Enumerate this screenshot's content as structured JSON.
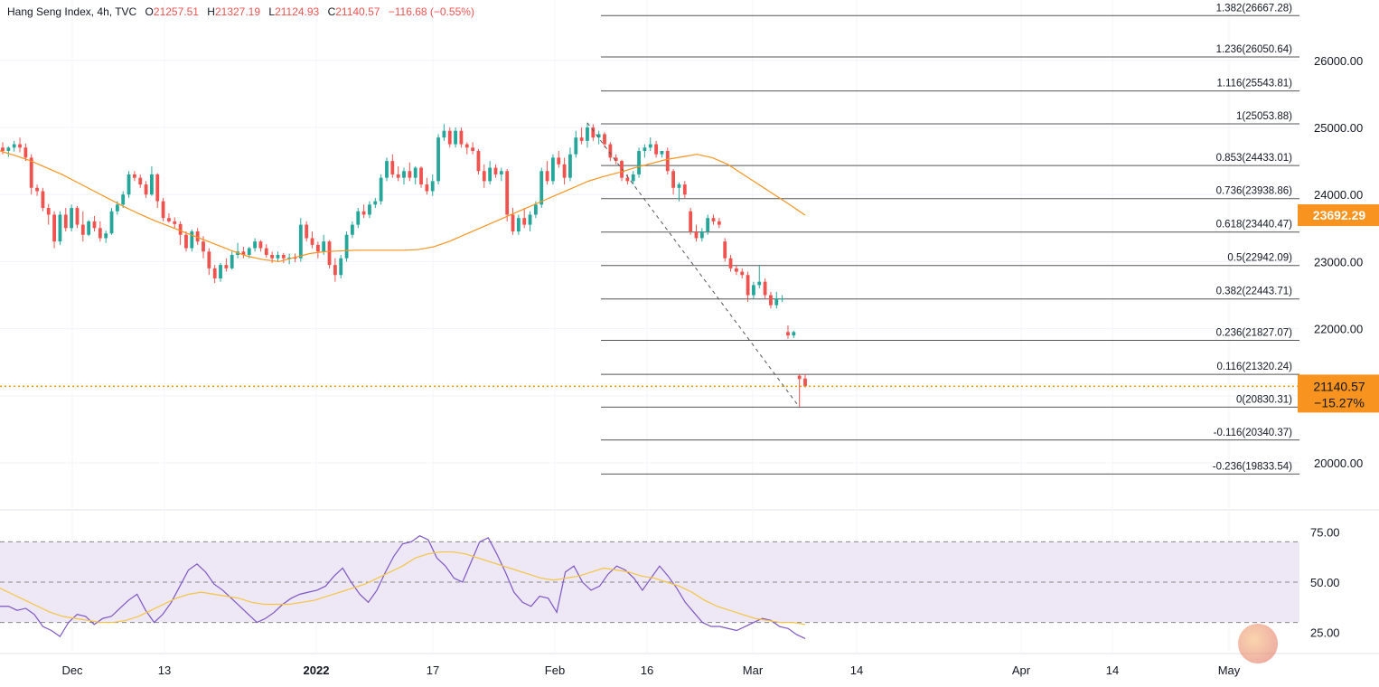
{
  "header": {
    "symbol": "Hang Seng Index, 4h, TVC",
    "open_key": "O",
    "open": "21257.51",
    "high_key": "H",
    "high": "21327.19",
    "low_key": "L",
    "low": "21124.93",
    "close_key": "C",
    "close": "21140.57",
    "change": "−116.68 (−0.55%)"
  },
  "colors": {
    "up": "#26a69a",
    "down": "#ef5350",
    "ma": "#f7931e",
    "rsi": "#7e57c2",
    "rsi_ma": "#f5c542",
    "rsi_band": "#ede7f6",
    "price_dots": "#e09c00",
    "fib": "#555555",
    "badge": "#f7931e"
  },
  "chart_data": {
    "type": "candlestick",
    "symbol": "Hang Seng Index",
    "interval": "4h",
    "x_ticks": [
      "Dec",
      "13",
      "2022",
      "17",
      "Feb",
      "16",
      "Mar",
      "14",
      "Apr",
      "14",
      "May"
    ],
    "y_ticks": [
      20000,
      21000,
      22000,
      23000,
      24000,
      25000,
      26000
    ],
    "y_tick_labels": [
      "20000.00",
      "21000.00",
      "22000.00",
      "23000.00",
      "24000.00",
      "25000.00",
      "26000.00"
    ],
    "ylim": [
      19300,
      26900
    ],
    "last_price": 21140.57,
    "last_price_label": "21140.57",
    "last_change_label": "−15.27%",
    "ma_last": 23692.29,
    "ma_last_label": "23692.29",
    "candles": [
      [
        24700,
        24780,
        24600,
        24650
      ],
      [
        24650,
        24720,
        24560,
        24700
      ],
      [
        24700,
        24800,
        24640,
        24750
      ],
      [
        24750,
        24850,
        24630,
        24700
      ],
      [
        24700,
        24760,
        24500,
        24550
      ],
      [
        24550,
        24600,
        24000,
        24100
      ],
      [
        24100,
        24150,
        23980,
        24050
      ],
      [
        24050,
        24100,
        23750,
        23800
      ],
      [
        23800,
        23860,
        23550,
        23700
      ],
      [
        23700,
        23750,
        23200,
        23300
      ],
      [
        23300,
        23750,
        23250,
        23700
      ],
      [
        23700,
        23800,
        23450,
        23500
      ],
      [
        23500,
        23850,
        23450,
        23800
      ],
      [
        23800,
        23830,
        23500,
        23550
      ],
      [
        23550,
        23750,
        23300,
        23400
      ],
      [
        23400,
        23620,
        23380,
        23600
      ],
      [
        23600,
        23680,
        23450,
        23500
      ],
      [
        23500,
        23600,
        23300,
        23350
      ],
      [
        23350,
        23460,
        23280,
        23420
      ],
      [
        23420,
        23800,
        23400,
        23750
      ],
      [
        23750,
        23900,
        23700,
        23850
      ],
      [
        23850,
        24050,
        23800,
        24000
      ],
      [
        24000,
        24350,
        23950,
        24300
      ],
      [
        24300,
        24350,
        24200,
        24250
      ],
      [
        24250,
        24300,
        24100,
        24150
      ],
      [
        24150,
        24200,
        23950,
        24000
      ],
      [
        24000,
        24420,
        23980,
        24300
      ],
      [
        24300,
        24320,
        23800,
        23900
      ],
      [
        23900,
        23950,
        23600,
        23650
      ],
      [
        23650,
        23720,
        23580,
        23600
      ],
      [
        23600,
        23660,
        23500,
        23560
      ],
      [
        23560,
        23600,
        23250,
        23400
      ],
      [
        23400,
        23450,
        23150,
        23200
      ],
      [
        23200,
        23480,
        23150,
        23450
      ],
      [
        23450,
        23500,
        23250,
        23300
      ],
      [
        23300,
        23380,
        23050,
        23150
      ],
      [
        23150,
        23200,
        22800,
        22900
      ],
      [
        22900,
        22950,
        22680,
        22750
      ],
      [
        22750,
        22980,
        22700,
        22950
      ],
      [
        22950,
        23050,
        22850,
        22900
      ],
      [
        22900,
        23150,
        22880,
        23100
      ],
      [
        23100,
        23280,
        23050,
        23150
      ],
      [
        23150,
        23220,
        23050,
        23100
      ],
      [
        23100,
        23220,
        23050,
        23200
      ],
      [
        23200,
        23350,
        23150,
        23300
      ],
      [
        23300,
        23320,
        23150,
        23200
      ],
      [
        23200,
        23260,
        23060,
        23100
      ],
      [
        23100,
        23150,
        22980,
        23050
      ],
      [
        23050,
        23150,
        23000,
        23100
      ],
      [
        23100,
        23130,
        22980,
        23050
      ],
      [
        23050,
        23120,
        22960,
        23060
      ],
      [
        23060,
        23120,
        22990,
        23050
      ],
      [
        23050,
        23650,
        23000,
        23550
      ],
      [
        23550,
        23600,
        23300,
        23350
      ],
      [
        23350,
        23450,
        23200,
        23250
      ],
      [
        23250,
        23300,
        23050,
        23150
      ],
      [
        23150,
        23400,
        23100,
        23300
      ],
      [
        23300,
        23320,
        22900,
        22950
      ],
      [
        22950,
        23050,
        22700,
        22800
      ],
      [
        22800,
        23100,
        22750,
        23050
      ],
      [
        23050,
        23450,
        23000,
        23400
      ],
      [
        23400,
        23600,
        23350,
        23550
      ],
      [
        23550,
        23800,
        23500,
        23750
      ],
      [
        23750,
        23850,
        23650,
        23700
      ],
      [
        23700,
        23900,
        23650,
        23850
      ],
      [
        23850,
        23950,
        23800,
        23900
      ],
      [
        23900,
        24300,
        23850,
        24250
      ],
      [
        24250,
        24550,
        24200,
        24500
      ],
      [
        24500,
        24600,
        24250,
        24300
      ],
      [
        24300,
        24420,
        24200,
        24250
      ],
      [
        24250,
        24400,
        24150,
        24350
      ],
      [
        24350,
        24480,
        24200,
        24250
      ],
      [
        24250,
        24420,
        24150,
        24400
      ],
      [
        24400,
        24420,
        24100,
        24150
      ],
      [
        24150,
        24250,
        24000,
        24050
      ],
      [
        24050,
        24300,
        23980,
        24200
      ],
      [
        24200,
        24900,
        24150,
        24850
      ],
      [
        24850,
        25050,
        24800,
        24950
      ],
      [
        24950,
        25000,
        24700,
        24750
      ],
      [
        24750,
        25000,
        24700,
        24950
      ],
      [
        24950,
        25000,
        24700,
        24750
      ],
      [
        24750,
        24780,
        24600,
        24700
      ],
      [
        24700,
        24780,
        24600,
        24650
      ],
      [
        24650,
        24680,
        24300,
        24350
      ],
      [
        24350,
        24450,
        24100,
        24200
      ],
      [
        24200,
        24500,
        24150,
        24400
      ],
      [
        24400,
        24450,
        24250,
        24300
      ],
      [
        24300,
        24400,
        24200,
        24350
      ],
      [
        24350,
        24380,
        23600,
        23700
      ],
      [
        23700,
        23800,
        23400,
        23450
      ],
      [
        23450,
        23700,
        23400,
        23650
      ],
      [
        23650,
        23800,
        23500,
        23550
      ],
      [
        23550,
        23750,
        23450,
        23700
      ],
      [
        23700,
        23900,
        23650,
        23850
      ],
      [
        23850,
        24400,
        23800,
        24350
      ],
      [
        24350,
        24500,
        24150,
        24200
      ],
      [
        24200,
        24600,
        24150,
        24550
      ],
      [
        24550,
        24650,
        24400,
        24450
      ],
      [
        24450,
        24550,
        24150,
        24250
      ],
      [
        24250,
        24700,
        24200,
        24600
      ],
      [
        24600,
        24950,
        24550,
        24850
      ],
      [
        24850,
        25000,
        24750,
        24800
      ],
      [
        24800,
        25070,
        24700,
        25000
      ],
      [
        25000,
        25050,
        24800,
        24850
      ],
      [
        24850,
        24950,
        24750,
        24900
      ],
      [
        24900,
        24930,
        24700,
        24750
      ],
      [
        24750,
        24780,
        24500,
        24550
      ],
      [
        24550,
        24600,
        24450,
        24500
      ],
      [
        24500,
        24520,
        24200,
        24250
      ],
      [
        24250,
        24300,
        24150,
        24200
      ],
      [
        24200,
        24350,
        24150,
        24300
      ],
      [
        24300,
        24700,
        24250,
        24650
      ],
      [
        24650,
        24750,
        24550,
        24700
      ],
      [
        24700,
        24850,
        24650,
        24750
      ],
      [
        24750,
        24800,
        24550,
        24600
      ],
      [
        24600,
        24650,
        24550,
        24650
      ],
      [
        24650,
        24700,
        24300,
        24350
      ],
      [
        24350,
        24380,
        24000,
        24100
      ],
      [
        24100,
        24180,
        23900,
        24150
      ],
      [
        24150,
        24200,
        23950,
        24000
      ],
      [
        23750,
        23800,
        23400,
        23450
      ],
      [
        23450,
        23550,
        23300,
        23350
      ],
      [
        23350,
        23500,
        23300,
        23450
      ],
      [
        23450,
        23700,
        23400,
        23650
      ],
      [
        23650,
        23700,
        23550,
        23600
      ],
      [
        23600,
        23650,
        23500,
        23550
      ],
      [
        23300,
        23350,
        23000,
        23050
      ],
      [
        23050,
        23100,
        22850,
        22900
      ],
      [
        22900,
        22950,
        22800,
        22850
      ],
      [
        22850,
        22900,
        22750,
        22800
      ],
      [
        22800,
        22850,
        22400,
        22500
      ],
      [
        22500,
        22700,
        22450,
        22650
      ],
      [
        22650,
        22950,
        22600,
        22700
      ],
      [
        22700,
        22750,
        22450,
        22500
      ],
      [
        22500,
        22550,
        22300,
        22350
      ],
      [
        22350,
        22550,
        22300,
        22450
      ],
      [
        22450,
        22500,
        22400,
        22450
      ],
      [
        21950,
        22050,
        21850,
        21900
      ],
      [
        21900,
        21970,
        21860,
        21950
      ],
      [
        21300,
        21320,
        20830,
        21250
      ],
      [
        21257.51,
        21327.19,
        21124.93,
        21140.57
      ]
    ],
    "ma_series": [
      24650,
      24580,
      24500,
      24400,
      24300,
      24180,
      24060,
      23940,
      23820,
      23710,
      23610,
      23520,
      23430,
      23340,
      23250,
      23160,
      23080,
      23030,
      23000,
      23060,
      23120,
      23150,
      23160,
      23170,
      23170,
      23170,
      23170,
      23180,
      23220,
      23300,
      23400,
      23500,
      23600,
      23700,
      23800,
      23900,
      24000,
      24100,
      24200,
      24270,
      24330,
      24400,
      24460,
      24520,
      24560,
      24600,
      24550,
      24450,
      24300,
      24150,
      24000,
      23850,
      23692.29
    ],
    "fib_levels": [
      {
        "ratio": "1.382",
        "value": 26667.28,
        "label": "1.382(26667.28)"
      },
      {
        "ratio": "1.236",
        "value": 26050.64,
        "label": "1.236(26050.64)"
      },
      {
        "ratio": "1.116",
        "value": 25543.81,
        "label": "1.116(25543.81)"
      },
      {
        "ratio": "1",
        "value": 25053.88,
        "label": "1(25053.88)"
      },
      {
        "ratio": "0.853",
        "value": 24433.01,
        "label": "0.853(24433.01)"
      },
      {
        "ratio": "0.736",
        "value": 23938.86,
        "label": "0.736(23938.86)"
      },
      {
        "ratio": "0.618",
        "value": 23440.47,
        "label": "0.618(23440.47)"
      },
      {
        "ratio": "0.5",
        "value": 22942.09,
        "label": "0.5(22942.09)"
      },
      {
        "ratio": "0.382",
        "value": 22443.71,
        "label": "0.382(22443.71)"
      },
      {
        "ratio": "0.236",
        "value": 21827.07,
        "label": "0.236(21827.07)"
      },
      {
        "ratio": "0.116",
        "value": 21320.24,
        "label": "0.116(21320.24)"
      },
      {
        "ratio": "0",
        "value": 20830.31,
        "label": "0(20830.31)"
      },
      {
        "ratio": "-0.116",
        "value": 20340.37,
        "label": "-0.116(20340.37)"
      },
      {
        "ratio": "-0.236",
        "value": 19833.54,
        "label": "-0.236(19833.54)"
      }
    ],
    "rsi": {
      "ylim": [
        15,
        85
      ],
      "y_ticks": [
        25,
        50,
        75
      ],
      "y_tick_labels": [
        "25.00",
        "50.00",
        "75.00"
      ],
      "band": [
        30,
        70
      ],
      "mid": 50,
      "rsi_series": [
        38,
        38,
        36,
        37,
        34,
        28,
        26,
        23,
        30,
        34,
        33,
        29,
        32,
        33,
        37,
        41,
        44,
        36,
        30,
        34,
        40,
        48,
        56,
        59,
        55,
        49,
        46,
        42,
        38,
        34,
        30,
        32,
        35,
        39,
        42,
        44,
        45,
        46,
        48,
        53,
        57,
        50,
        44,
        40,
        46,
        55,
        63,
        69,
        70,
        73,
        71,
        62,
        58,
        52,
        50,
        60,
        70,
        72,
        64,
        55,
        45,
        40,
        38,
        43,
        42,
        35,
        55,
        58,
        50,
        46,
        48,
        54,
        58,
        56,
        52,
        46,
        52,
        58,
        53,
        47,
        40,
        35,
        30,
        28,
        28,
        27,
        26,
        28,
        30,
        32,
        31,
        28,
        27,
        24,
        22
      ],
      "rsi_ma_series": [
        47,
        44,
        41,
        38,
        35,
        33,
        32,
        31,
        30,
        30,
        31,
        33,
        36,
        39,
        42,
        44,
        45,
        44,
        43,
        42,
        40,
        39,
        39,
        39,
        40,
        41,
        43,
        45,
        47,
        49,
        52,
        55,
        58,
        62,
        64,
        65,
        65,
        64,
        62,
        60,
        58,
        56,
        54,
        52,
        51,
        52,
        53,
        55,
        57,
        56,
        55,
        53,
        52,
        50,
        48,
        45,
        41,
        38,
        36,
        34,
        32,
        31,
        30,
        30,
        29
      ]
    }
  }
}
